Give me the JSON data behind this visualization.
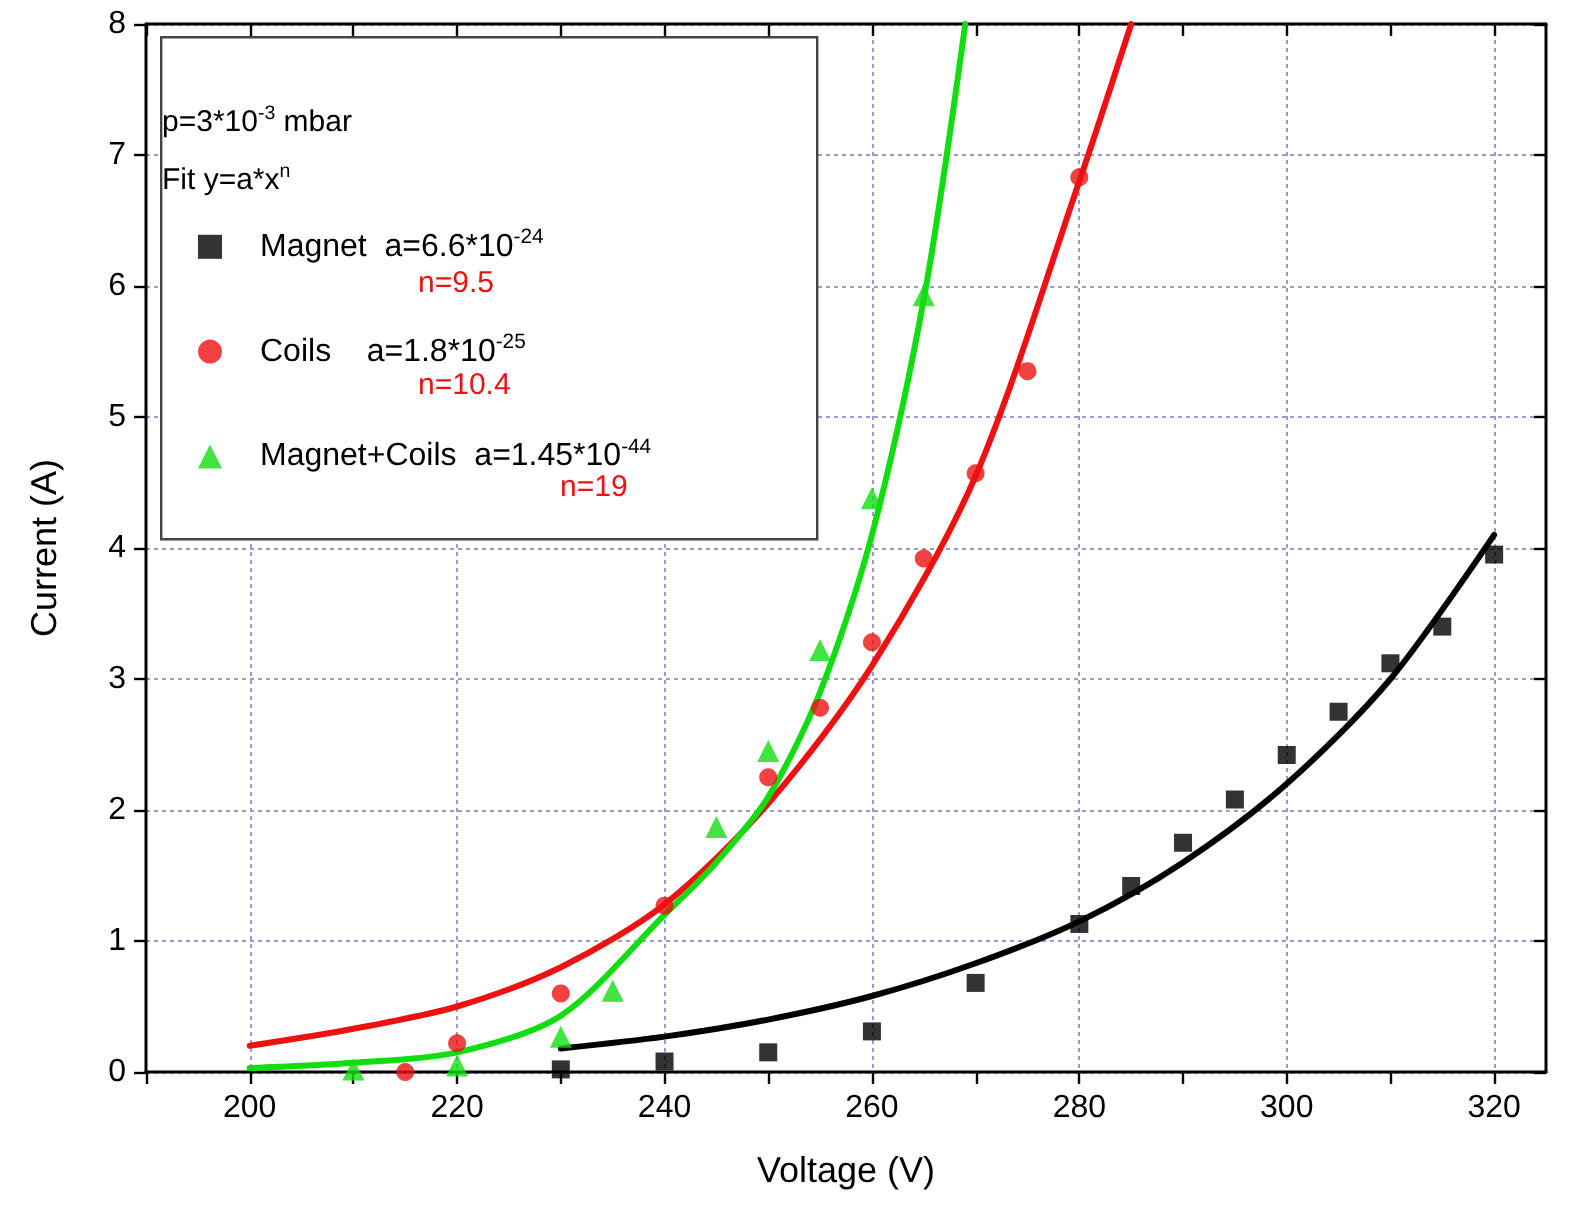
{
  "chart_data": {
    "type": "scatter",
    "xlabel": "Voltage (V)",
    "ylabel": "Current (A)",
    "annotations": [
      "p=3*10$^{-3}$ mbar",
      "Fit y=a*x$^{n}$",
      "n=9.5",
      "n=10.4",
      "n=19"
    ],
    "series": [
      {
        "name": "Magnet  a=6.6*10$^{-24}$",
        "type": "scatter",
        "marker": "square",
        "color": "#000000",
        "x": [
          230,
          240,
          250,
          260,
          270,
          280,
          285,
          290,
          295,
          300,
          305,
          310,
          315,
          320
        ],
        "values": [
          0.02,
          0.08,
          0.15,
          0.31,
          0.68,
          1.13,
          1.42,
          1.75,
          2.08,
          2.42,
          2.75,
          3.12,
          3.4,
          3.95
        ]
      },
      {
        "name": "Coils    a=1.8*10$^{-25}$",
        "type": "scatter",
        "marker": "circle",
        "color": "#ee1111",
        "x": [
          215,
          220,
          230,
          240,
          250,
          255,
          260,
          265,
          270,
          275,
          280
        ],
        "values": [
          0.0,
          0.22,
          0.6,
          1.27,
          2.25,
          2.78,
          3.28,
          3.92,
          4.57,
          5.35,
          6.83
        ]
      },
      {
        "name": "Magnet+Coils  a=1.45*10$^{-44}$",
        "type": "scatter",
        "marker": "triangle",
        "color": "#11dd11",
        "x": [
          210,
          220,
          230,
          235,
          245,
          250,
          255,
          260,
          265
        ],
        "values": [
          0.02,
          0.05,
          0.27,
          0.62,
          1.87,
          2.45,
          3.22,
          4.38,
          5.93
        ]
      },
      {
        "type": "line",
        "color": "#000000",
        "x": [
          230,
          240,
          250,
          260,
          270,
          280,
          290,
          300,
          310,
          320
        ],
        "values": [
          0.18,
          0.27,
          0.4,
          0.58,
          0.83,
          1.15,
          1.6,
          2.2,
          3.0,
          4.1
        ]
      },
      {
        "type": "line",
        "color": "#ee1111",
        "x": [
          200,
          210,
          220,
          230,
          240,
          250,
          260,
          270,
          280,
          285
        ],
        "values": [
          0.2,
          0.33,
          0.5,
          0.8,
          1.28,
          2.05,
          3.1,
          4.55,
          6.8,
          8.0
        ]
      },
      {
        "type": "line",
        "color": "#11dd11",
        "x": [
          200,
          210,
          220,
          230,
          240,
          245,
          250,
          255,
          260,
          265,
          269
        ],
        "values": [
          0.03,
          0.07,
          0.15,
          0.43,
          1.2,
          1.6,
          2.1,
          2.9,
          4.1,
          5.9,
          8.0
        ]
      }
    ],
    "xlim": [
      190,
      325
    ],
    "xticks": [
      {
        "value": 190,
        "label": null
      },
      200,
      {
        "value": 210,
        "label": null
      },
      220,
      {
        "value": 230,
        "label": null
      },
      240,
      {
        "value": 250,
        "label": null
      },
      260,
      {
        "value": 270,
        "label": null
      },
      280,
      {
        "value": 290,
        "label": null
      },
      300,
      {
        "value": 310,
        "label": null
      },
      320
    ],
    "ylim": [
      0,
      8
    ],
    "yticks": [
      0,
      1,
      2,
      3,
      4,
      5,
      6,
      7,
      8
    ],
    "grid": true,
    "legend": "top left"
  }
}
